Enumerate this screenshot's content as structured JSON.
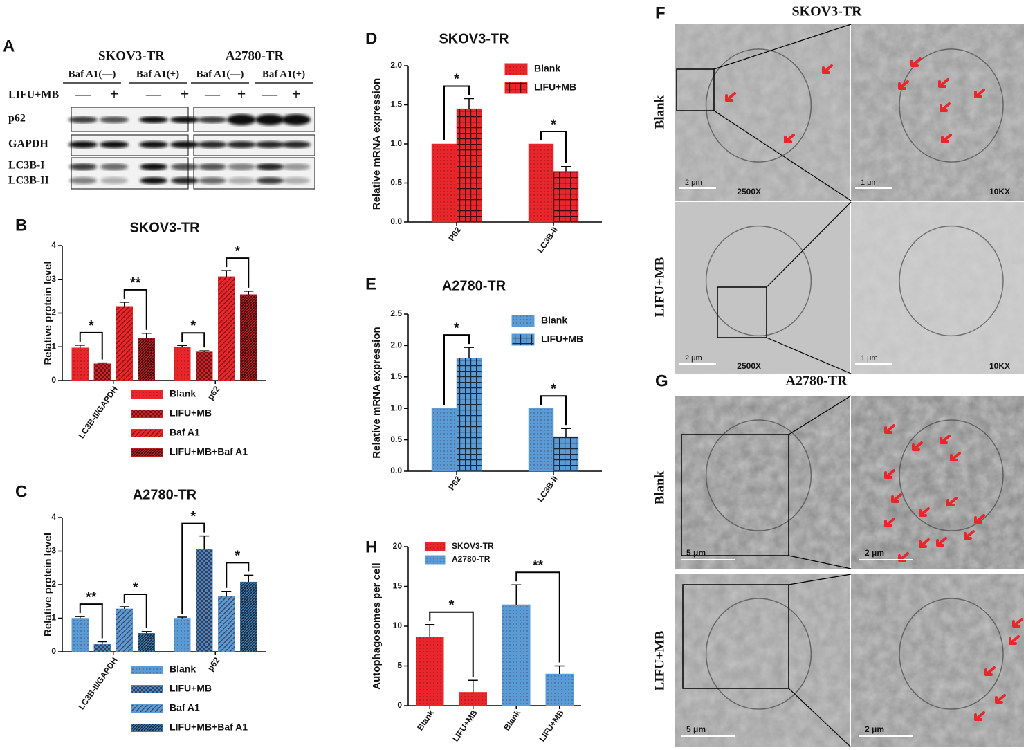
{
  "blot": {
    "label": "A",
    "cell_lines": [
      "SKOV3-TR",
      "A2780-TR"
    ],
    "treatments": [
      "Baf A1(—)",
      "Baf A1(+)",
      "Baf A1(—)",
      "Baf A1(+)"
    ],
    "row_label": "LIFU+MB",
    "signs": [
      "—",
      "+",
      "—",
      "+",
      "—",
      "+",
      "—",
      "+"
    ],
    "proteins": [
      "p62",
      "GAPDH",
      "LC3B-I",
      "LC3B-II"
    ]
  },
  "micrographs": [
    {
      "label": "F",
      "title": "SKOV3-TR",
      "rows": [
        "Blank",
        "LIFU+MB"
      ],
      "magnifications": [
        "2500X",
        "10KX",
        "2500X",
        "10KX"
      ],
      "scale_bars": [
        "2 μm",
        "1 μm",
        "2 μm",
        "1 μm"
      ]
    },
    {
      "label": "G",
      "title": "A2780-TR",
      "rows": [
        "Blank",
        "LIFU+MB"
      ],
      "scale_bars": [
        "5 μm",
        "2 μm",
        "5 μm",
        "2 μm"
      ]
    }
  ],
  "chart_data": [
    {
      "type": "bar",
      "label": "B",
      "title": "SKOV3-TR",
      "ylabel": "Relative protein level",
      "categories": [
        "LC3B-II/GAPDH",
        "p62"
      ],
      "series": [
        {
          "name": "Blank",
          "color": "#e8262b",
          "pattern": "dots",
          "values": [
            0.97,
            1.0
          ],
          "errors": [
            0.08,
            0.04
          ]
        },
        {
          "name": "LIFU+MB",
          "color": "#c9262b",
          "pattern": "checker",
          "values": [
            0.5,
            0.85
          ],
          "errors": [
            0.02,
            0.03
          ]
        },
        {
          "name": "Baf A1",
          "color": "#e8262b",
          "pattern": "diagonal",
          "values": [
            2.2,
            3.08
          ],
          "errors": [
            0.12,
            0.18
          ]
        },
        {
          "name": "LIFU+MB+Baf A1",
          "color": "#b51f24",
          "pattern": "dense",
          "values": [
            1.25,
            2.55
          ],
          "errors": [
            0.15,
            0.1
          ]
        }
      ],
      "ylim": [
        0,
        4
      ],
      "yticks": [
        0,
        1,
        2,
        3,
        4
      ],
      "annotations": [
        "*",
        "**",
        "*",
        "*"
      ]
    },
    {
      "type": "bar",
      "label": "C",
      "title": "A2780-TR",
      "ylabel": "Relative protein level",
      "categories": [
        "LC3B-II/GAPDH",
        "p62"
      ],
      "series": [
        {
          "name": "Blank",
          "color": "#5b9bd5",
          "pattern": "dots",
          "values": [
            1.0,
            1.0
          ],
          "errors": [
            0.05,
            0.03
          ]
        },
        {
          "name": "LIFU+MB",
          "color": "#4a86c0",
          "pattern": "checker",
          "values": [
            0.22,
            3.05
          ],
          "errors": [
            0.08,
            0.4
          ]
        },
        {
          "name": "Baf A1",
          "color": "#5b9bd5",
          "pattern": "diagonal",
          "values": [
            1.28,
            1.65
          ],
          "errors": [
            0.06,
            0.15
          ]
        },
        {
          "name": "LIFU+MB+Baf A1",
          "color": "#3f78ad",
          "pattern": "dense",
          "values": [
            0.55,
            2.08
          ],
          "errors": [
            0.05,
            0.2
          ]
        }
      ],
      "ylim": [
        0,
        4
      ],
      "yticks": [
        0,
        1,
        2,
        3,
        4
      ],
      "annotations": [
        "**",
        "*",
        "*",
        "*"
      ]
    },
    {
      "type": "bar",
      "label": "D",
      "title": "SKOV3-TR",
      "ylabel": "Relative mRNA expression",
      "categories": [
        "P62",
        "LC3B-II"
      ],
      "series": [
        {
          "name": "Blank",
          "color": "#e8262b",
          "pattern": "dots",
          "values": [
            1.0,
            1.0
          ]
        },
        {
          "name": "LIFU+MB",
          "color": "#e8262b",
          "pattern": "grid",
          "values": [
            1.45,
            0.65
          ],
          "errors": [
            0.13,
            0.06
          ]
        }
      ],
      "ylim": [
        0,
        2
      ],
      "yticks": [
        {
          "value": 0,
          "label": "0.0"
        },
        0.5,
        {
          "value": 1,
          "label": "1.0"
        },
        1.5,
        {
          "value": 2,
          "label": "2.0"
        }
      ],
      "annotations": [
        "*",
        "*"
      ]
    },
    {
      "type": "bar",
      "label": "E",
      "title": "A2780-TR",
      "ylabel": "Relative mRNA expression",
      "categories": [
        "P62",
        "LC3B-II"
      ],
      "series": [
        {
          "name": "Blank",
          "color": "#5b9bd5",
          "pattern": "dots",
          "values": [
            1.0,
            1.0
          ]
        },
        {
          "name": "LIFU+MB",
          "color": "#5b9bd5",
          "pattern": "grid",
          "values": [
            1.8,
            0.55
          ],
          "errors": [
            0.17,
            0.13
          ]
        }
      ],
      "ylim": [
        0,
        2.5
      ],
      "yticks": [
        {
          "value": 0,
          "label": "0.0"
        },
        0.5,
        {
          "value": 1,
          "label": "1.0"
        },
        1.5,
        {
          "value": 2,
          "label": "2.0"
        },
        2.5
      ],
      "annotations": [
        "*",
        "*"
      ]
    },
    {
      "type": "bar",
      "label": "H",
      "ylabel": "Autophagosomes per cell",
      "categories": [
        "Blank",
        "LIFU+MB",
        "Blank",
        "LIFU+MB"
      ],
      "series": [
        {
          "name": "SKOV3-TR",
          "color": "#e8262b",
          "pattern": "dots",
          "values": [
            8.6,
            1.7,
            null,
            null
          ],
          "errors": [
            1.6,
            1.5,
            null,
            null
          ]
        },
        {
          "name": "A2780-TR",
          "color": "#5b9bd5",
          "pattern": "dots",
          "values": [
            null,
            null,
            12.7,
            4.0
          ],
          "errors": [
            null,
            null,
            2.5,
            1.0
          ]
        }
      ],
      "ylim": [
        0,
        20
      ],
      "yticks": [
        0,
        5,
        10,
        15,
        20
      ],
      "annotations": [
        "*",
        "**"
      ]
    }
  ]
}
